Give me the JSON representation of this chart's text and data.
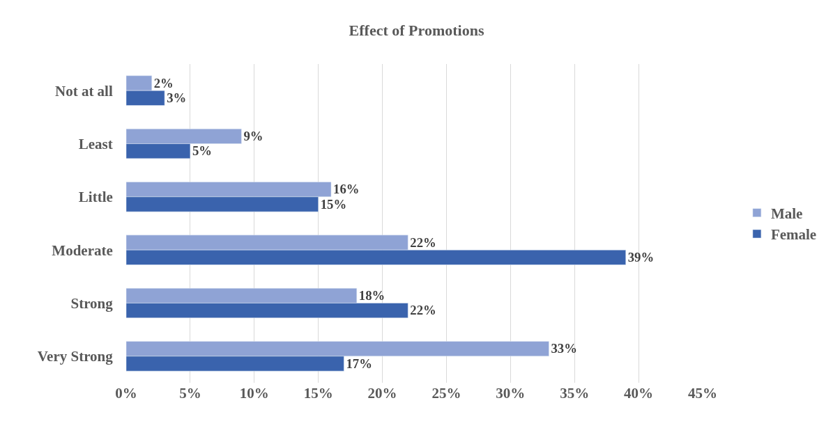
{
  "chart_data": {
    "type": "bar",
    "orientation": "horizontal",
    "title": "Effect of Promotions",
    "categories": [
      "Not at all",
      "Least",
      "Little",
      "Moderate",
      "Strong",
      "Very Strong"
    ],
    "series": [
      {
        "name": "Male",
        "color": "#8fa3d5",
        "values": [
          2,
          9,
          16,
          22,
          18,
          33
        ],
        "value_labels": [
          "2%",
          "9%",
          "16%",
          "22%",
          "18%",
          "33%"
        ]
      },
      {
        "name": "Female",
        "color": "#3a63ad",
        "values": [
          3,
          5,
          15,
          39,
          22,
          17
        ],
        "value_labels": [
          "3%",
          "5%",
          "15%",
          "39%",
          "22%",
          "17%"
        ]
      }
    ],
    "xlim": [
      0,
      45
    ],
    "xticks": [
      {
        "value": 0,
        "label": "0%"
      },
      {
        "value": 5,
        "label": "5%"
      },
      {
        "value": 10,
        "label": "10%"
      },
      {
        "value": 15,
        "label": "15%"
      },
      {
        "value": 20,
        "label": "20%"
      },
      {
        "value": 25,
        "label": "25%"
      },
      {
        "value": 30,
        "label": "30%"
      },
      {
        "value": 35,
        "label": "35%"
      },
      {
        "value": 40,
        "label": "40%"
      },
      {
        "value": 45,
        "label": "45%"
      }
    ],
    "grid": "x",
    "legend": "right"
  }
}
